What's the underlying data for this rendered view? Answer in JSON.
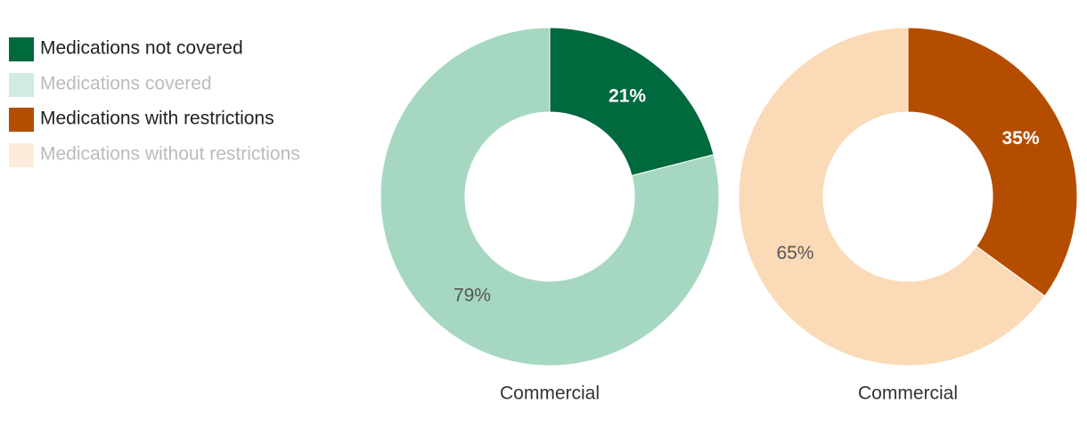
{
  "chart_data": [
    {
      "type": "donut",
      "title": "Commercial",
      "categories": [
        "Medications not covered",
        "Medications covered"
      ],
      "values": [
        21,
        79
      ],
      "value_labels": [
        "21%",
        "79%"
      ],
      "colors": [
        "#00693e",
        "#a6d8c1"
      ]
    },
    {
      "type": "donut",
      "title": "Commercial",
      "categories": [
        "Medications with restrictions",
        "Medications without restrictions"
      ],
      "values": [
        35,
        65
      ],
      "value_labels": [
        "35%",
        "65%"
      ],
      "colors": [
        "#b54d00",
        "#fbdab7"
      ]
    }
  ]
}
